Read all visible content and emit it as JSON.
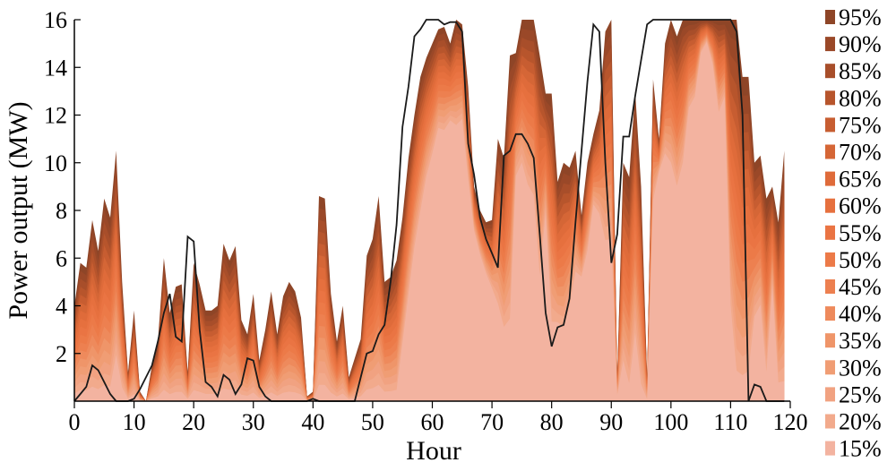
{
  "chart_data": {
    "type": "area",
    "title": "",
    "xlabel": "Hour",
    "ylabel": "Power output (MW)",
    "xlim": [
      0,
      120
    ],
    "ylim": [
      0,
      16
    ],
    "x_ticks": [
      "0",
      "10",
      "20",
      "30",
      "40",
      "50",
      "60",
      "70",
      "80",
      "90",
      "100",
      "110",
      "120"
    ],
    "y_ticks": [
      "2",
      "4",
      "6",
      "8",
      "10",
      "12",
      "14",
      "16"
    ],
    "grid": false,
    "legend_position": "right",
    "legend": [
      "95%",
      "90%",
      "85%",
      "80%",
      "75%",
      "70%",
      "65%",
      "60%",
      "55%",
      "50%",
      "45%",
      "40%",
      "35%",
      "30%",
      "25%",
      "20%",
      "15%"
    ],
    "colors": {
      "95%": "#8e4527",
      "90%": "#9a4828",
      "85%": "#a84e2a",
      "80%": "#b7552c",
      "75%": "#c75d31",
      "70%": "#d56636",
      "65%": "#df6b3a",
      "60%": "#e6703e",
      "55%": "#ea7443",
      "50%": "#ec7a48",
      "45%": "#ed8050",
      "40%": "#ee8a5c",
      "35%": "#ef9569",
      "30%": "#f09d74",
      "25%": "#f1a281",
      "20%": "#f2aa8c",
      "15%": "#f3b3a0"
    },
    "envelope": {
      "x": [
        0,
        1,
        2,
        3,
        4,
        5,
        6,
        7,
        8,
        9,
        10,
        11,
        12,
        13,
        14,
        15,
        16,
        17,
        18,
        19,
        20,
        21,
        22,
        23,
        24,
        25,
        26,
        27,
        28,
        29,
        30,
        31,
        32,
        33,
        34,
        35,
        36,
        37,
        38,
        39,
        40,
        41,
        42,
        43,
        44,
        45,
        46,
        47,
        48,
        49,
        50,
        51,
        52,
        53,
        54,
        55,
        56,
        57,
        58,
        59,
        60,
        61,
        62,
        63,
        64,
        65,
        66,
        67,
        68,
        69,
        70,
        71,
        72,
        73,
        74,
        75,
        76,
        77,
        78,
        79,
        80,
        81,
        82,
        83,
        84,
        85,
        86,
        87,
        88,
        89,
        90,
        91,
        92,
        93,
        94,
        95,
        96,
        97,
        98,
        99,
        100,
        101,
        102,
        103,
        104,
        105,
        106,
        107,
        108,
        109,
        110,
        111,
        112,
        113,
        114,
        115,
        116,
        117,
        118,
        119
      ],
      "upper": [
        4.0,
        5.8,
        5.6,
        7.6,
        6.3,
        8.5,
        7.7,
        10.5,
        5.0,
        1.2,
        3.8,
        0.4,
        0.0,
        1.5,
        2.5,
        6.0,
        3.7,
        4.8,
        4.9,
        1.2,
        5.8,
        4.9,
        3.8,
        3.8,
        4.0,
        6.6,
        5.9,
        6.5,
        3.4,
        2.8,
        4.5,
        1.7,
        3.0,
        4.6,
        2.8,
        4.4,
        5.0,
        4.6,
        3.5,
        0.2,
        0.4,
        8.6,
        8.5,
        4.5,
        2.5,
        4.0,
        1.0,
        1.8,
        2.6,
        6.1,
        6.8,
        8.6,
        5.0,
        5.2,
        5.9,
        7.7,
        10.2,
        12.0,
        13.6,
        14.4,
        15.0,
        15.6,
        15.7,
        15.0,
        16.0,
        15.8,
        13.2,
        9.0,
        8.0,
        7.5,
        7.6,
        11.0,
        10.2,
        14.5,
        14.6,
        16.0,
        16.0,
        16.0,
        14.5,
        12.9,
        12.9,
        9.2,
        10.0,
        9.8,
        10.5,
        7.8,
        10.0,
        11.2,
        12.2,
        15.5,
        16.0,
        1.0,
        10.0,
        9.4,
        13.0,
        9.0,
        1.0,
        13.5,
        11.0,
        15.0,
        16.0,
        15.3,
        16.0,
        16.0,
        16.0,
        16.0,
        16.0,
        16.0,
        16.0,
        16.0,
        16.0,
        16.0,
        13.6,
        13.6,
        10.0,
        10.3,
        8.5,
        9.0,
        7.5,
        10.5
      ],
      "lower": [
        0.0,
        0.0,
        0.0,
        0.0,
        0.0,
        0.0,
        0.0,
        1.2,
        0.2,
        0.0,
        0.0,
        0.0,
        0.0,
        0.0,
        0.0,
        0.0,
        0.0,
        0.0,
        0.0,
        0.0,
        0.0,
        0.0,
        0.0,
        0.0,
        0.0,
        0.0,
        0.0,
        0.0,
        0.0,
        0.0,
        0.0,
        0.0,
        0.0,
        0.0,
        0.0,
        0.0,
        0.0,
        0.0,
        0.0,
        0.0,
        0.0,
        0.0,
        0.0,
        0.0,
        0.0,
        0.0,
        0.0,
        0.0,
        0.0,
        0.0,
        0.0,
        0.0,
        0.0,
        0.0,
        0.0,
        2.0,
        4.0,
        6.0,
        7.5,
        9.0,
        10.0,
        11.1,
        11.0,
        11.5,
        11.2,
        11.5,
        9.0,
        7.0,
        6.0,
        5.2,
        4.5,
        3.5,
        2.5,
        2.5,
        9.0,
        9.5,
        8.5,
        8.0,
        4.5,
        7.5,
        2.5,
        2.8,
        2.5,
        3.5,
        5.0,
        5.0,
        6.0,
        8.0,
        7.5,
        6.0,
        6.0,
        0.2,
        1.0,
        0.0,
        2.0,
        0.0,
        0.0,
        8.0,
        9.5,
        10.0,
        9.5,
        8.5,
        9.5,
        12.0,
        12.5,
        14.5,
        15.0,
        14.0,
        11.8,
        12.5,
        3.0,
        0.0,
        0.0,
        0.2,
        3.0,
        3.5,
        0.6,
        4.5,
        0.2,
        0.0
      ]
    },
    "series": [
      {
        "x": [
          0,
          1,
          2,
          3,
          4,
          5,
          6,
          7,
          8,
          9,
          10,
          11,
          12,
          13,
          14,
          15,
          16,
          17,
          18,
          19,
          20,
          21,
          22,
          23,
          24,
          25,
          26,
          27,
          28,
          29,
          30,
          31,
          32,
          33,
          34,
          35,
          36,
          37,
          38,
          39,
          40,
          41,
          42,
          43,
          44,
          45,
          46,
          47,
          48,
          49,
          50,
          51,
          52,
          53,
          54,
          55,
          56,
          57,
          58,
          59,
          60,
          61,
          62,
          63,
          64,
          65,
          66,
          67,
          68,
          69,
          70,
          71,
          72,
          73,
          74,
          75,
          76,
          77,
          78,
          79,
          80,
          81,
          82,
          83,
          84,
          85,
          86,
          87,
          88,
          89,
          90,
          91,
          92,
          93,
          94,
          95,
          96,
          97,
          98,
          99,
          100,
          101,
          102,
          103,
          104,
          105,
          106,
          107,
          108,
          109,
          110,
          111,
          112,
          113,
          114,
          115,
          116,
          117,
          118,
          119
        ],
        "values": [
          0.0,
          0.3,
          0.6,
          1.5,
          1.3,
          0.8,
          0.3,
          0.0,
          0.0,
          0.0,
          0.1,
          0.5,
          1.0,
          1.5,
          2.5,
          3.7,
          4.5,
          2.7,
          2.5,
          6.9,
          6.7,
          3.0,
          0.8,
          0.6,
          0.2,
          1.1,
          0.9,
          0.3,
          0.7,
          1.8,
          1.7,
          0.6,
          0.2,
          0.0,
          0.0,
          0.0,
          0.0,
          0.0,
          0.0,
          0.0,
          0.1,
          0.0,
          0.0,
          0.0,
          0.0,
          0.0,
          0.0,
          0.0,
          1.0,
          2.0,
          2.1,
          2.8,
          3.2,
          5.0,
          7.4,
          11.5,
          13.2,
          15.3,
          15.6,
          16.0,
          16.0,
          16.0,
          15.8,
          15.9,
          15.9,
          15.5,
          10.8,
          9.5,
          7.7,
          6.8,
          6.2,
          5.6,
          10.3,
          10.5,
          11.2,
          11.2,
          10.8,
          10.2,
          7.0,
          3.7,
          2.3,
          3.1,
          3.2,
          4.3,
          7.5,
          10.5,
          13.4,
          15.8,
          15.5,
          10.0,
          5.8,
          7.0,
          11.1,
          11.1,
          12.8,
          14.3,
          15.8,
          16.0,
          16.0,
          16.0,
          16.0,
          16.0,
          16.0,
          16.0,
          16.0,
          16.0,
          16.0,
          16.0,
          16.0,
          16.0,
          16.0,
          15.5,
          12.0,
          0.0,
          0.7,
          0.6,
          0.0,
          0.0,
          0.0,
          0.0
        ]
      }
    ]
  }
}
